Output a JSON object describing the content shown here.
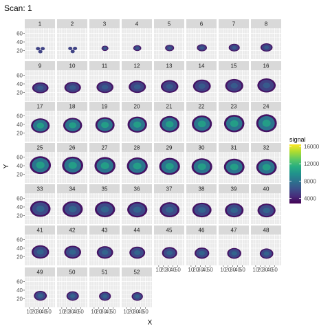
{
  "chart_data": {
    "type": "heatmap",
    "title": "Scan: 1",
    "xlabel": "X",
    "ylabel": "Y",
    "panels": [
      "1",
      "2",
      "3",
      "4",
      "5",
      "6",
      "7",
      "8",
      "9",
      "10",
      "11",
      "12",
      "13",
      "14",
      "15",
      "16",
      "17",
      "18",
      "19",
      "20",
      "21",
      "22",
      "23",
      "24",
      "25",
      "26",
      "27",
      "28",
      "29",
      "30",
      "31",
      "32",
      "33",
      "34",
      "35",
      "36",
      "37",
      "38",
      "39",
      "40",
      "41",
      "42",
      "43",
      "44",
      "45",
      "46",
      "47",
      "48",
      "49",
      "50",
      "51",
      "52"
    ],
    "ncol": 8,
    "x_ticks": [
      "10",
      "20",
      "30",
      "40",
      "50"
    ],
    "y_ticks": [
      "20",
      "40",
      "60"
    ],
    "xlim": [
      0,
      64
    ],
    "ylim": [
      0,
      72
    ],
    "legend": {
      "title": "signal",
      "ticks": [
        "16000",
        "12000",
        "8000",
        "4000"
      ],
      "tick_values": [
        16000,
        12000,
        8000,
        4000
      ],
      "range": [
        2800,
        16500
      ],
      "placement": "right"
    },
    "colors": {
      "panel_bg": "#ebebeb",
      "strip_bg": "#d9d9d9",
      "grid_major": "#ffffff",
      "scale": [
        "#440154",
        "#472d7b",
        "#3b528b",
        "#2c728e",
        "#21918c",
        "#28ae80",
        "#5ec962",
        "#addc30",
        "#fde725"
      ]
    }
  }
}
